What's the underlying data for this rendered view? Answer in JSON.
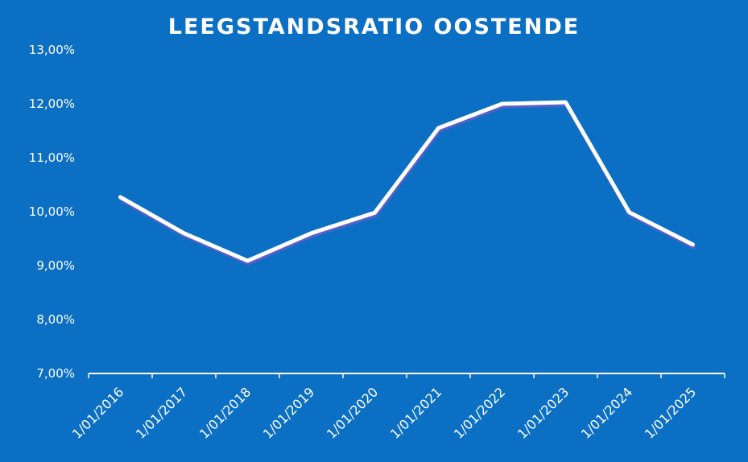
{
  "chart_data": {
    "type": "line",
    "title": "LEEGSTANDSRATIO OOSTENDE",
    "xlabel": "",
    "ylabel": "",
    "categories": [
      "1/01/2016",
      "1/01/2017",
      "1/01/2018",
      "1/01/2019",
      "1/01/2020",
      "1/01/2021",
      "1/01/2022",
      "1/01/2023",
      "1/01/2024",
      "1/01/2025"
    ],
    "series": [
      {
        "values": [
          10.27,
          9.6,
          9.09,
          9.6,
          9.98,
          11.55,
          12.0,
          12.03,
          9.99,
          9.39
        ]
      }
    ],
    "ylim": [
      7,
      13
    ],
    "y_ticks": [
      7,
      8,
      9,
      10,
      11,
      12,
      13
    ],
    "y_tick_labels": [
      "7,00%",
      "8,00%",
      "9,00%",
      "10,00%",
      "11,00%",
      "12,00%",
      "13,00%"
    ],
    "drop_lines": true,
    "grid": false,
    "legend": "none",
    "colors": {
      "background": "#0b6fc4",
      "line": "#ffffff",
      "line_shadow": "#6a5bc9",
      "text": "#ffffff"
    }
  }
}
